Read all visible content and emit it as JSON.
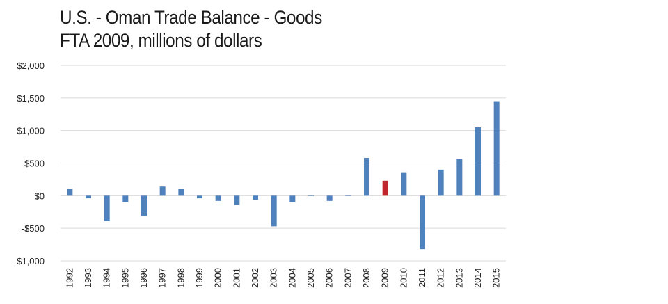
{
  "chart_data": {
    "type": "bar",
    "title": "U.S. - Oman Trade Balance - Goods",
    "subtitle": "FTA 2009, millions of dollars",
    "xlabel": "",
    "ylabel": "",
    "ylim": [
      -1000,
      2000
    ],
    "yticks": [
      {
        "value": 2000,
        "label": "$2,000"
      },
      {
        "value": 1500,
        "label": "$1,500"
      },
      {
        "value": 1000,
        "label": "$1,000"
      },
      {
        "value": 500,
        "label": "$500"
      },
      {
        "value": 0,
        "label": "$0"
      },
      {
        "value": -500,
        "label": "-$500"
      },
      {
        "value": -1000,
        "label": "- $1,000"
      }
    ],
    "categories": [
      "1992",
      "1993",
      "1994",
      "1995",
      "1996",
      "1997",
      "1998",
      "1999",
      "2000",
      "2001",
      "2002",
      "2003",
      "2004",
      "2005",
      "2006",
      "2007",
      "2008",
      "2009",
      "2010",
      "2011",
      "2012",
      "2013",
      "2014",
      "2015"
    ],
    "values": [
      110,
      -40,
      -390,
      -100,
      -310,
      140,
      110,
      -40,
      -80,
      -140,
      -60,
      -470,
      -100,
      10,
      -80,
      10,
      580,
      230,
      360,
      -820,
      400,
      560,
      1050,
      1450
    ],
    "highlight_category": "2009",
    "bar_color": "#4f81bd",
    "highlight_color": "#c0262d",
    "grid": true
  }
}
